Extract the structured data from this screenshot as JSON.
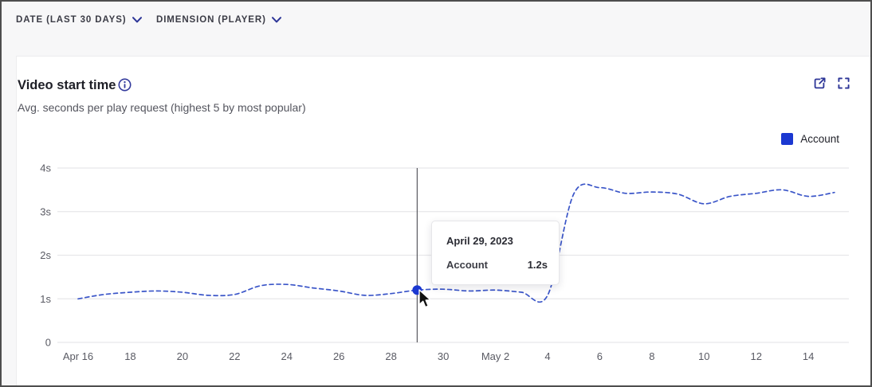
{
  "topbar": {
    "filters": [
      {
        "label": "DATE (LAST 30 DAYS)"
      },
      {
        "label": "DIMENSION (PLAYER)"
      }
    ]
  },
  "card": {
    "title": "Video start time",
    "subtitle": "Avg. seconds per play request (highest 5 by most popular)"
  },
  "icons": {
    "info": "info-circle-icon",
    "export": "export-share-icon",
    "fullscreen": "fullscreen-expand-icon",
    "chevron": "chevron-down-icon"
  },
  "legend": {
    "items": [
      {
        "label": "Account",
        "color": "#1b38d1"
      }
    ]
  },
  "tooltip": {
    "date": "April 29, 2023",
    "series": "Account",
    "value": "1.2s"
  },
  "colors": {
    "accent_blue": "#2c3597",
    "line_blue": "#3a55c8",
    "dot_blue": "#1b38d1",
    "grid": "#e7e7ea",
    "axis_text": "#595a63",
    "crosshair": "#4b4c52",
    "page_bg": "#f7f7f8",
    "card_bg": "#ffffff"
  },
  "chart_data": {
    "type": "line",
    "title": "Video start time",
    "subtitle": "Avg. seconds per play request (highest 5 by most popular)",
    "ylabel": "seconds",
    "ylim": [
      0,
      4
    ],
    "grid": "horizontal",
    "legend_position": "top-right",
    "y_tick_labels": [
      "0",
      "1s",
      "2s",
      "3s",
      "4s"
    ],
    "x_tick_labels": [
      "Apr 16",
      "18",
      "20",
      "22",
      "24",
      "26",
      "28",
      "30",
      "May 2",
      "4",
      "6",
      "8",
      "10",
      "12",
      "14"
    ],
    "x_tick_every_n_points": 2,
    "dates": [
      "Apr 16",
      "Apr 17",
      "Apr 18",
      "Apr 19",
      "Apr 20",
      "Apr 21",
      "Apr 22",
      "Apr 23",
      "Apr 24",
      "Apr 25",
      "Apr 26",
      "Apr 27",
      "Apr 28",
      "Apr 29",
      "Apr 30",
      "May 1",
      "May 2",
      "May 3",
      "May 4",
      "May 5",
      "May 6",
      "May 7",
      "May 8",
      "May 9",
      "May 10",
      "May 11",
      "May 12",
      "May 13",
      "May 14",
      "May 15"
    ],
    "series": [
      {
        "name": "Account",
        "style": "dashed",
        "color": "#3a55c8",
        "values": [
          1.0,
          1.1,
          1.15,
          1.18,
          1.15,
          1.08,
          1.1,
          1.3,
          1.33,
          1.25,
          1.18,
          1.08,
          1.12,
          1.2,
          1.22,
          1.18,
          1.2,
          1.15,
          1.08,
          3.4,
          3.55,
          3.42,
          3.45,
          3.4,
          3.18,
          3.35,
          3.42,
          3.5,
          3.35,
          3.44
        ]
      }
    ],
    "highlight": {
      "series": "Account",
      "date": "Apr 29",
      "index": 13,
      "value": 1.2
    }
  }
}
